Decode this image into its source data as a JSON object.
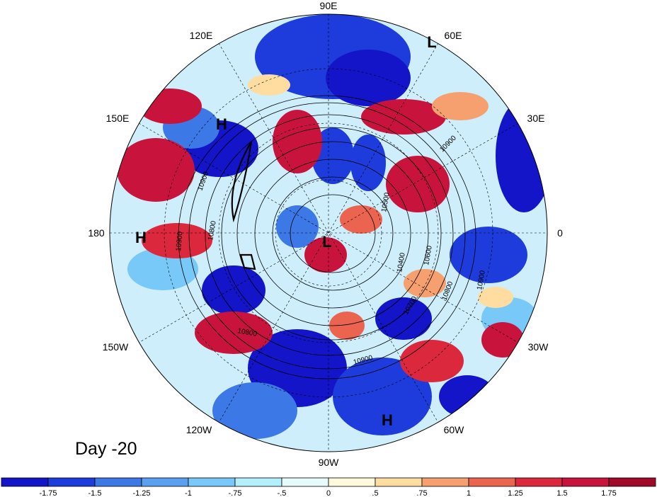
{
  "title_text": "Day -20",
  "longitude_labels": {
    "top": "90E",
    "upper_left": "120E",
    "upper_right": "60E",
    "left_upper": "150E",
    "right_upper": "30E",
    "left": "180",
    "right": "0",
    "left_lower": "150W",
    "right_lower": "30W",
    "lower_left": "120W",
    "lower_right": "60W",
    "bottom": "90W"
  },
  "pressure_centers": [
    "H",
    "L",
    "H",
    "L",
    "H"
  ],
  "contour_values": [
    "10900",
    "10800",
    "10600",
    "10500",
    "10400",
    "10700",
    "10900",
    "10800",
    "10900",
    "10800",
    "10900",
    "10900"
  ],
  "colorbar": {
    "ticks": [
      "-1.75",
      "-1.5",
      "-1.25",
      "-1",
      "-.75",
      "-.5",
      "0",
      ".5",
      ".75",
      "1",
      "1.25",
      "1.5",
      "1.75"
    ],
    "colors": [
      "#1414c8",
      "#1e3cdc",
      "#3c78e6",
      "#5aa0f0",
      "#78c8f8",
      "#b4f0fc",
      "#e6fcfc",
      "#fffadc",
      "#ffdca0",
      "#f5a06e",
      "#eb6450",
      "#dc283c",
      "#c8143c",
      "#a00a28"
    ]
  }
}
